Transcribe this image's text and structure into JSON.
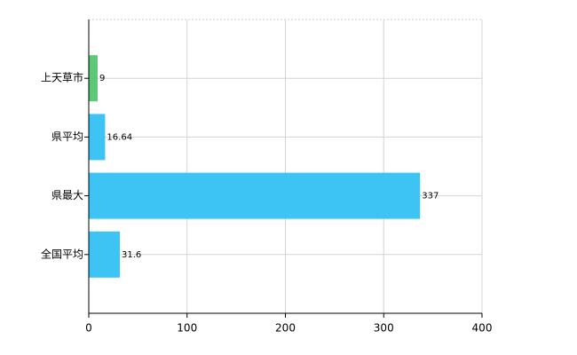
{
  "chart_data": {
    "type": "hbar",
    "categories": [
      "上天草市",
      "県平均",
      "県最大",
      "全国平均"
    ],
    "values": [
      9,
      16.64,
      337,
      31.6
    ],
    "colors": [
      "#5dc878",
      "#3ec3f5",
      "#3ec3f5",
      "#3ec3f5"
    ],
    "xlim": [
      0,
      400
    ],
    "xticks": [
      0,
      100,
      200,
      300,
      400
    ],
    "grid": true
  }
}
